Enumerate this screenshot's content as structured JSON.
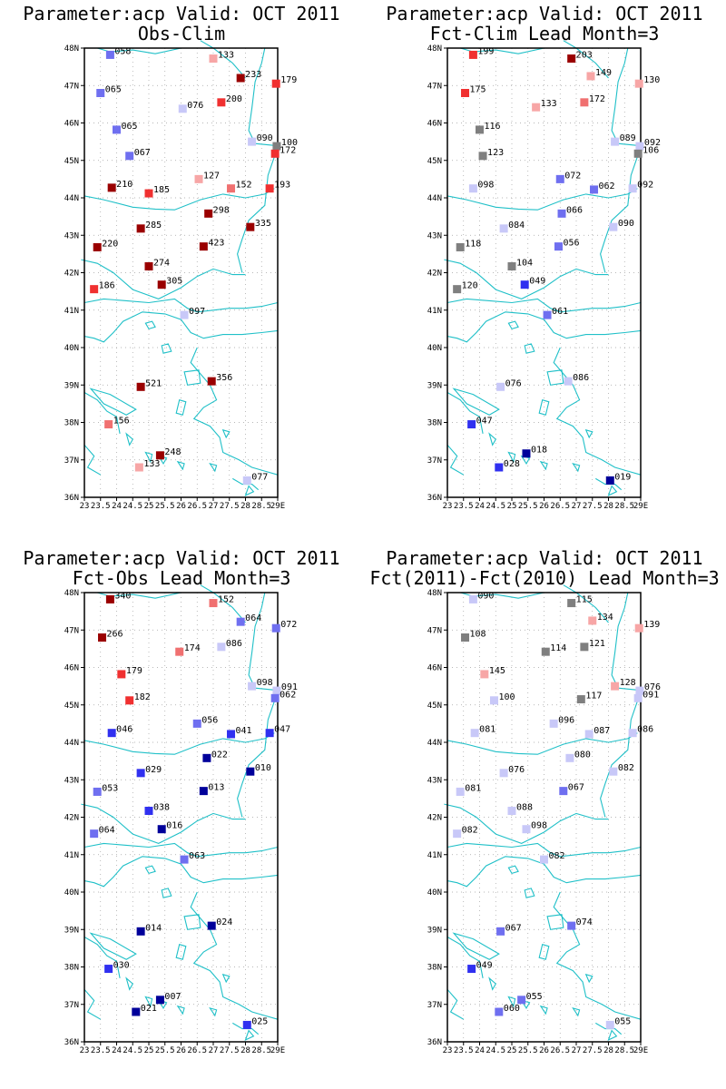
{
  "map": {
    "lat_labels": [
      "48N",
      "47N",
      "46N",
      "45N",
      "44N",
      "43N",
      "42N",
      "41N",
      "40N",
      "39N",
      "38N",
      "37N",
      "36N"
    ],
    "lon_labels": [
      "23",
      "23.5",
      "24",
      "24.5",
      "25",
      "25.5",
      "26",
      "26.5",
      "27",
      "27.5",
      "28",
      "28.5",
      "29E"
    ],
    "lon_range": [
      23,
      29
    ],
    "lat_range": [
      36,
      48
    ],
    "coast_color": "#20c0c8",
    "grid_style": "dotted"
  },
  "panels": [
    {
      "title_line1": "Parameter:acp Valid: OCT 2011",
      "title_line2": "Obs-Clim",
      "stations": [
        {
          "lon": 23.8,
          "lat": 47.82,
          "label": "058",
          "color": "#6f6ff0"
        },
        {
          "lon": 27.0,
          "lat": 47.72,
          "label": "133",
          "color": "#f7a6a6"
        },
        {
          "lon": 27.85,
          "lat": 47.2,
          "label": "233",
          "color": "#9a0000"
        },
        {
          "lon": 28.95,
          "lat": 47.05,
          "label": "179",
          "color": "#f03030"
        },
        {
          "lon": 23.5,
          "lat": 46.8,
          "label": "065",
          "color": "#6f6ff0"
        },
        {
          "lon": 26.05,
          "lat": 46.38,
          "label": "076",
          "color": "#c8c8f8"
        },
        {
          "lon": 27.25,
          "lat": 46.55,
          "label": "200",
          "color": "#f03030"
        },
        {
          "lon": 24.0,
          "lat": 45.82,
          "label": "065",
          "color": "#6f6ff0"
        },
        {
          "lon": 28.2,
          "lat": 45.5,
          "label": "090",
          "color": "#c8c8f8"
        },
        {
          "lon": 28.97,
          "lat": 45.38,
          "label": "100",
          "color": "#7f7f7f"
        },
        {
          "lon": 28.92,
          "lat": 45.18,
          "label": "172",
          "color": "#f03030"
        },
        {
          "lon": 24.4,
          "lat": 45.12,
          "label": "067",
          "color": "#6f6ff0"
        },
        {
          "lon": 26.55,
          "lat": 44.5,
          "label": "127",
          "color": "#f7a6a6"
        },
        {
          "lon": 23.85,
          "lat": 44.27,
          "label": "210",
          "color": "#9a0000"
        },
        {
          "lon": 25.0,
          "lat": 44.12,
          "label": "185",
          "color": "#f03030"
        },
        {
          "lon": 27.55,
          "lat": 44.25,
          "label": "152",
          "color": "#f07070"
        },
        {
          "lon": 28.75,
          "lat": 44.25,
          "label": "193",
          "color": "#f03030"
        },
        {
          "lon": 26.85,
          "lat": 43.58,
          "label": "298",
          "color": "#9a0000"
        },
        {
          "lon": 24.75,
          "lat": 43.18,
          "label": "285",
          "color": "#9a0000"
        },
        {
          "lon": 28.15,
          "lat": 43.22,
          "label": "335",
          "color": "#9a0000"
        },
        {
          "lon": 23.4,
          "lat": 42.68,
          "label": "220",
          "color": "#9a0000"
        },
        {
          "lon": 26.7,
          "lat": 42.7,
          "label": "423",
          "color": "#9a0000"
        },
        {
          "lon": 25.0,
          "lat": 42.17,
          "label": "274",
          "color": "#9a0000"
        },
        {
          "lon": 25.4,
          "lat": 41.68,
          "label": "305",
          "color": "#9a0000"
        },
        {
          "lon": 23.3,
          "lat": 41.56,
          "label": "186",
          "color": "#f03030"
        },
        {
          "lon": 26.1,
          "lat": 40.87,
          "label": "097",
          "color": "#c8c8f8"
        },
        {
          "lon": 24.75,
          "lat": 38.95,
          "label": "521",
          "color": "#9a0000"
        },
        {
          "lon": 26.95,
          "lat": 39.1,
          "label": "356",
          "color": "#9a0000"
        },
        {
          "lon": 23.75,
          "lat": 37.95,
          "label": "156",
          "color": "#f07070"
        },
        {
          "lon": 25.35,
          "lat": 37.12,
          "label": "248",
          "color": "#9a0000"
        },
        {
          "lon": 24.7,
          "lat": 36.8,
          "label": "133",
          "color": "#f7a6a6"
        },
        {
          "lon": 28.05,
          "lat": 36.45,
          "label": "077",
          "color": "#c8c8f8"
        }
      ]
    },
    {
      "title_line1": "Parameter:acp Valid: OCT 2011",
      "title_line2": "Fct-Clim Lead Month=3",
      "stations": [
        {
          "lon": 23.8,
          "lat": 47.82,
          "label": "199",
          "color": "#f03030"
        },
        {
          "lon": 26.85,
          "lat": 47.72,
          "label": "203",
          "color": "#9a0000"
        },
        {
          "lon": 27.45,
          "lat": 47.25,
          "label": "149",
          "color": "#f7a6a6"
        },
        {
          "lon": 28.95,
          "lat": 47.05,
          "label": "130",
          "color": "#f7a6a6"
        },
        {
          "lon": 23.55,
          "lat": 46.8,
          "label": "175",
          "color": "#f03030"
        },
        {
          "lon": 25.75,
          "lat": 46.42,
          "label": "133",
          "color": "#f7a6a6"
        },
        {
          "lon": 27.25,
          "lat": 46.55,
          "label": "172",
          "color": "#f07070"
        },
        {
          "lon": 24.0,
          "lat": 45.82,
          "label": "116",
          "color": "#7f7f7f"
        },
        {
          "lon": 28.2,
          "lat": 45.5,
          "label": "089",
          "color": "#c8c8f8"
        },
        {
          "lon": 28.97,
          "lat": 45.38,
          "label": "092",
          "color": "#c8c8f8"
        },
        {
          "lon": 28.92,
          "lat": 45.18,
          "label": "106",
          "color": "#7f7f7f"
        },
        {
          "lon": 24.1,
          "lat": 45.12,
          "label": "123",
          "color": "#7f7f7f"
        },
        {
          "lon": 26.5,
          "lat": 44.5,
          "label": "072",
          "color": "#6f6ff0"
        },
        {
          "lon": 23.8,
          "lat": 44.25,
          "label": "098",
          "color": "#c8c8f8"
        },
        {
          "lon": 27.55,
          "lat": 44.22,
          "label": "062",
          "color": "#6f6ff0"
        },
        {
          "lon": 28.75,
          "lat": 44.25,
          "label": "092",
          "color": "#c8c8f8"
        },
        {
          "lon": 26.55,
          "lat": 43.58,
          "label": "066",
          "color": "#6f6ff0"
        },
        {
          "lon": 24.75,
          "lat": 43.18,
          "label": "084",
          "color": "#c8c8f8"
        },
        {
          "lon": 28.15,
          "lat": 43.22,
          "label": "090",
          "color": "#c8c8f8"
        },
        {
          "lon": 23.4,
          "lat": 42.68,
          "label": "118",
          "color": "#7f7f7f"
        },
        {
          "lon": 26.45,
          "lat": 42.7,
          "label": "056",
          "color": "#6f6ff0"
        },
        {
          "lon": 25.0,
          "lat": 42.17,
          "label": "104",
          "color": "#7f7f7f"
        },
        {
          "lon": 25.4,
          "lat": 41.68,
          "label": "049",
          "color": "#3030f0"
        },
        {
          "lon": 23.3,
          "lat": 41.56,
          "label": "120",
          "color": "#7f7f7f"
        },
        {
          "lon": 26.1,
          "lat": 40.87,
          "label": "061",
          "color": "#6f6ff0"
        },
        {
          "lon": 24.65,
          "lat": 38.95,
          "label": "076",
          "color": "#c8c8f8"
        },
        {
          "lon": 26.75,
          "lat": 39.1,
          "label": "086",
          "color": "#c8c8f8"
        },
        {
          "lon": 23.75,
          "lat": 37.95,
          "label": "047",
          "color": "#3030f0"
        },
        {
          "lon": 25.45,
          "lat": 37.17,
          "label": "018",
          "color": "#00009a"
        },
        {
          "lon": 24.6,
          "lat": 36.8,
          "label": "028",
          "color": "#3030f0"
        },
        {
          "lon": 28.05,
          "lat": 36.45,
          "label": "019",
          "color": "#00009a"
        }
      ]
    },
    {
      "title_line1": "Parameter:acp Valid: OCT 2011",
      "title_line2": "Fct-Obs Lead Month=3",
      "stations": [
        {
          "lon": 23.8,
          "lat": 47.82,
          "label": "340",
          "color": "#9a0000"
        },
        {
          "lon": 27.0,
          "lat": 47.72,
          "label": "152",
          "color": "#f07070"
        },
        {
          "lon": 27.85,
          "lat": 47.22,
          "label": "064",
          "color": "#6f6ff0"
        },
        {
          "lon": 28.95,
          "lat": 47.05,
          "label": "072",
          "color": "#6f6ff0"
        },
        {
          "lon": 23.55,
          "lat": 46.8,
          "label": "266",
          "color": "#9a0000"
        },
        {
          "lon": 25.95,
          "lat": 46.42,
          "label": "174",
          "color": "#f07070"
        },
        {
          "lon": 27.25,
          "lat": 46.55,
          "label": "086",
          "color": "#c8c8f8"
        },
        {
          "lon": 24.15,
          "lat": 45.82,
          "label": "179",
          "color": "#f03030"
        },
        {
          "lon": 28.2,
          "lat": 45.5,
          "label": "098",
          "color": "#c8c8f8"
        },
        {
          "lon": 28.97,
          "lat": 45.38,
          "label": "091",
          "color": "#c8c8f8"
        },
        {
          "lon": 28.92,
          "lat": 45.18,
          "label": "062",
          "color": "#6f6ff0"
        },
        {
          "lon": 24.4,
          "lat": 45.12,
          "label": "182",
          "color": "#f03030"
        },
        {
          "lon": 26.5,
          "lat": 44.5,
          "label": "056",
          "color": "#6f6ff0"
        },
        {
          "lon": 23.85,
          "lat": 44.25,
          "label": "046",
          "color": "#3030f0"
        },
        {
          "lon": 27.55,
          "lat": 44.22,
          "label": "041",
          "color": "#3030f0"
        },
        {
          "lon": 28.75,
          "lat": 44.25,
          "label": "047",
          "color": "#3030f0"
        },
        {
          "lon": 26.8,
          "lat": 43.58,
          "label": "022",
          "color": "#00009a"
        },
        {
          "lon": 24.75,
          "lat": 43.18,
          "label": "029",
          "color": "#3030f0"
        },
        {
          "lon": 28.15,
          "lat": 43.22,
          "label": "010",
          "color": "#00009a"
        },
        {
          "lon": 23.4,
          "lat": 42.68,
          "label": "053",
          "color": "#6f6ff0"
        },
        {
          "lon": 26.7,
          "lat": 42.7,
          "label": "013",
          "color": "#00009a"
        },
        {
          "lon": 25.0,
          "lat": 42.17,
          "label": "038",
          "color": "#3030f0"
        },
        {
          "lon": 25.4,
          "lat": 41.68,
          "label": "016",
          "color": "#00009a"
        },
        {
          "lon": 23.3,
          "lat": 41.56,
          "label": "064",
          "color": "#6f6ff0"
        },
        {
          "lon": 26.1,
          "lat": 40.87,
          "label": "063",
          "color": "#6f6ff0"
        },
        {
          "lon": 24.75,
          "lat": 38.95,
          "label": "014",
          "color": "#00009a"
        },
        {
          "lon": 26.95,
          "lat": 39.1,
          "label": "024",
          "color": "#00009a"
        },
        {
          "lon": 23.75,
          "lat": 37.95,
          "label": "030",
          "color": "#3030f0"
        },
        {
          "lon": 25.35,
          "lat": 37.12,
          "label": "007",
          "color": "#00009a"
        },
        {
          "lon": 24.6,
          "lat": 36.8,
          "label": "021",
          "color": "#00009a"
        },
        {
          "lon": 28.05,
          "lat": 36.45,
          "label": "025",
          "color": "#3030f0"
        }
      ]
    },
    {
      "title_line1": "Parameter:acp Valid: OCT 2011",
      "title_line2": "Fct(2011)-Fct(2010) Lead Month=3",
      "stations": [
        {
          "lon": 23.8,
          "lat": 47.82,
          "label": "090",
          "color": "#c8c8f8"
        },
        {
          "lon": 26.85,
          "lat": 47.72,
          "label": "115",
          "color": "#7f7f7f"
        },
        {
          "lon": 27.5,
          "lat": 47.25,
          "label": "134",
          "color": "#f7a6a6"
        },
        {
          "lon": 28.95,
          "lat": 47.05,
          "label": "139",
          "color": "#f7a6a6"
        },
        {
          "lon": 23.55,
          "lat": 46.8,
          "label": "108",
          "color": "#7f7f7f"
        },
        {
          "lon": 26.05,
          "lat": 46.42,
          "label": "114",
          "color": "#7f7f7f"
        },
        {
          "lon": 27.25,
          "lat": 46.55,
          "label": "121",
          "color": "#7f7f7f"
        },
        {
          "lon": 24.15,
          "lat": 45.82,
          "label": "145",
          "color": "#f7a6a6"
        },
        {
          "lon": 28.2,
          "lat": 45.5,
          "label": "128",
          "color": "#f7a6a6"
        },
        {
          "lon": 28.97,
          "lat": 45.38,
          "label": "076",
          "color": "#c8c8f8"
        },
        {
          "lon": 28.92,
          "lat": 45.18,
          "label": "091",
          "color": "#c8c8f8"
        },
        {
          "lon": 24.45,
          "lat": 45.12,
          "label": "100",
          "color": "#c8c8f8"
        },
        {
          "lon": 27.15,
          "lat": 45.15,
          "label": "117",
          "color": "#7f7f7f"
        },
        {
          "lon": 26.3,
          "lat": 44.5,
          "label": "096",
          "color": "#c8c8f8"
        },
        {
          "lon": 23.85,
          "lat": 44.25,
          "label": "081",
          "color": "#c8c8f8"
        },
        {
          "lon": 27.4,
          "lat": 44.22,
          "label": "087",
          "color": "#c8c8f8"
        },
        {
          "lon": 28.75,
          "lat": 44.25,
          "label": "086",
          "color": "#c8c8f8"
        },
        {
          "lon": 26.8,
          "lat": 43.58,
          "label": "080",
          "color": "#c8c8f8"
        },
        {
          "lon": 24.75,
          "lat": 43.18,
          "label": "076",
          "color": "#c8c8f8"
        },
        {
          "lon": 28.15,
          "lat": 43.22,
          "label": "082",
          "color": "#c8c8f8"
        },
        {
          "lon": 23.4,
          "lat": 42.68,
          "label": "081",
          "color": "#c8c8f8"
        },
        {
          "lon": 26.6,
          "lat": 42.7,
          "label": "067",
          "color": "#6f6ff0"
        },
        {
          "lon": 25.0,
          "lat": 42.17,
          "label": "088",
          "color": "#c8c8f8"
        },
        {
          "lon": 25.45,
          "lat": 41.68,
          "label": "098",
          "color": "#c8c8f8"
        },
        {
          "lon": 23.3,
          "lat": 41.56,
          "label": "082",
          "color": "#c8c8f8"
        },
        {
          "lon": 26.0,
          "lat": 40.87,
          "label": "082",
          "color": "#c8c8f8"
        },
        {
          "lon": 24.65,
          "lat": 38.95,
          "label": "067",
          "color": "#6f6ff0"
        },
        {
          "lon": 26.85,
          "lat": 39.1,
          "label": "074",
          "color": "#6f6ff0"
        },
        {
          "lon": 23.75,
          "lat": 37.95,
          "label": "049",
          "color": "#3030f0"
        },
        {
          "lon": 25.3,
          "lat": 37.12,
          "label": "055",
          "color": "#6f6ff0"
        },
        {
          "lon": 24.6,
          "lat": 36.8,
          "label": "060",
          "color": "#6f6ff0"
        },
        {
          "lon": 28.05,
          "lat": 36.45,
          "label": "055",
          "color": "#c8c8f8"
        }
      ]
    }
  ]
}
